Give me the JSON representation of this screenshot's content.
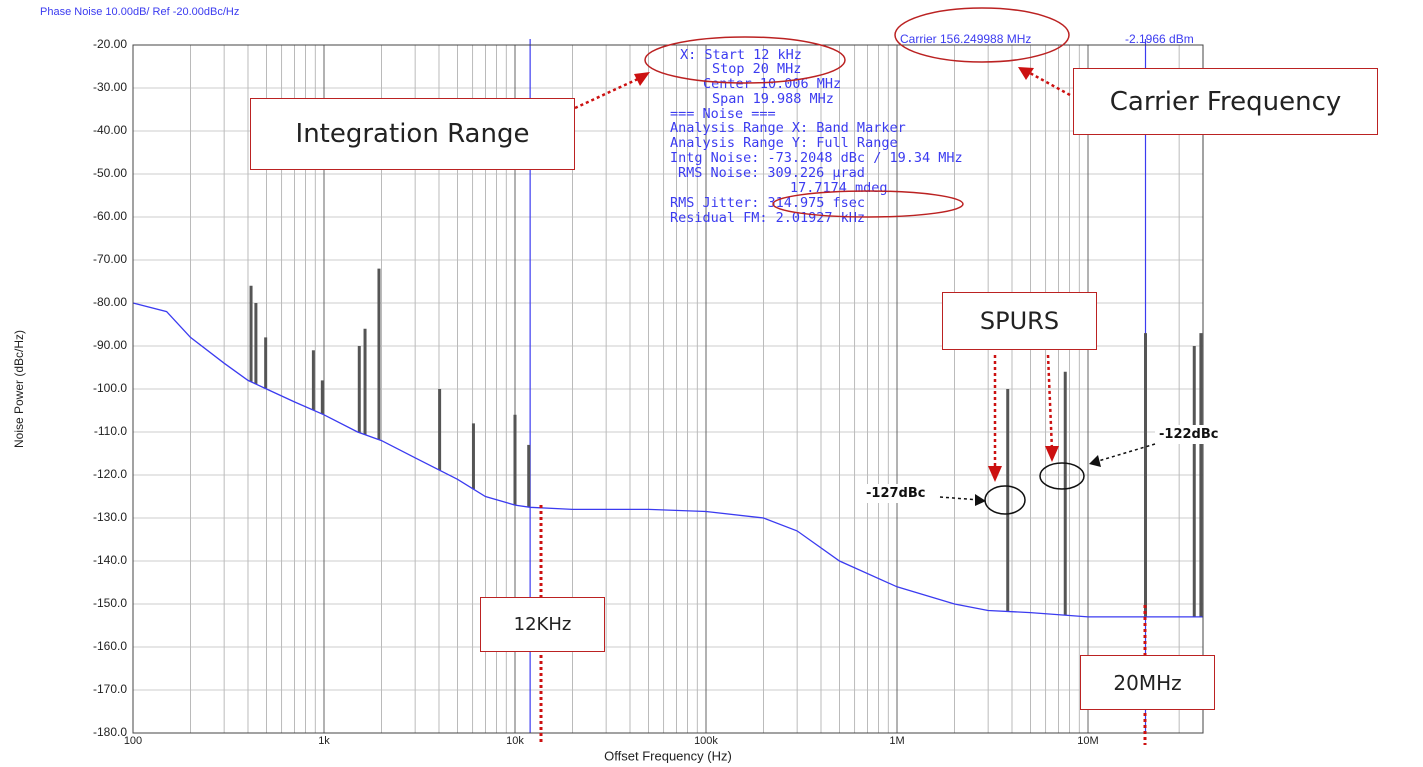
{
  "chart_data": {
    "type": "line",
    "title": "Phase Noise 10.00dB/ Ref -20.00dBc/Hz",
    "carrier": "Carrier 156.249988 MHz",
    "carrier_power": "-2.1966 dBm",
    "xlabel": "Offset Frequency (Hz)",
    "ylabel": "Noise Power (dBc/Hz)",
    "xlog": true,
    "grid": true,
    "color": "#3b3bf0",
    "spur_color": "#555555",
    "xlim": [
      100,
      40000000
    ],
    "ylim": [
      -180,
      -20
    ],
    "xticks": [
      100,
      {
        "value": 1000,
        "label": "1k"
      },
      {
        "value": 10000,
        "label": "10k"
      },
      {
        "value": 100000,
        "label": "100k"
      },
      {
        "value": 1000000,
        "label": "1M"
      },
      {
        "value": 10000000,
        "label": "10M"
      }
    ],
    "yticks": [
      {
        "value": -20,
        "label": "-20.00"
      },
      {
        "value": -30,
        "label": "-30.00"
      },
      {
        "value": -40,
        "label": "-40.00"
      },
      {
        "value": -50,
        "label": "-50.00"
      },
      {
        "value": -60,
        "label": "-60.00"
      },
      {
        "value": -70,
        "label": "-70.00"
      },
      {
        "value": -80,
        "label": "-80.00"
      },
      {
        "value": -90,
        "label": "-90.00"
      },
      {
        "value": -100,
        "label": "-100.0"
      },
      {
        "value": -110,
        "label": "-110.0"
      },
      {
        "value": -120,
        "label": "-120.0"
      },
      {
        "value": -130,
        "label": "-130.0"
      },
      {
        "value": -140,
        "label": "-140.0"
      },
      {
        "value": -150,
        "label": "-150.0"
      },
      {
        "value": -160,
        "label": "-160.0"
      },
      {
        "value": -170,
        "label": "-170.0"
      },
      {
        "value": -180,
        "label": "-180.0"
      }
    ],
    "x": [
      100,
      150,
      200,
      300,
      400,
      500,
      700,
      1000,
      1500,
      2000,
      3000,
      5000,
      7000,
      10000,
      12000,
      20000,
      50000,
      100000,
      200000,
      300000,
      500000,
      1000000,
      2000000,
      3000000,
      5000000,
      10000000,
      20000000,
      40000000
    ],
    "values": [
      -80,
      -82,
      -88,
      -94,
      -98,
      -100,
      -103,
      -106,
      -110,
      -112,
      -116,
      -121,
      -125,
      -127,
      -127.5,
      -128,
      -128,
      -128.5,
      -130,
      -133,
      -140,
      -146,
      -150,
      -151.5,
      -152,
      -153,
      -153,
      -153
    ],
    "spurs": {
      "x": [
        415,
        440,
        495,
        880,
        980,
        1530,
        1640,
        1940,
        4030,
        6060,
        10000,
        11800,
        3800000,
        7600000,
        20000000,
        36000000,
        39000000
      ],
      "values": [
        -76,
        -80,
        -88,
        -91,
        -98,
        -90,
        -86,
        -72,
        -100,
        -108,
        -106,
        -113,
        -100,
        -96,
        -87,
        -90,
        -87
      ]
    },
    "band_markers": [
      12000,
      20000000
    ],
    "marker_info": [
      "X: Start 12 kHz",
      "Stop 20 MHz",
      "Center 10.006 MHz",
      "Span 19.988 MHz",
      "=== Noise ===",
      "Analysis Range X: Band Marker",
      "Analysis Range Y: Full Range",
      "Intg Noise: -73.2048 dBc / 19.34 MHz",
      "RMS Noise: 309.226 µrad",
      "17.7174 mdeg",
      "RMS Jitter: 314.975 fsec",
      "Residual FM: 2.01927 kHz"
    ],
    "annotations": [
      "Integration Range",
      "Carrier Frequency",
      "SPURS",
      "12KHz",
      "20MHz",
      "-127dBc",
      "-122dBc"
    ]
  }
}
